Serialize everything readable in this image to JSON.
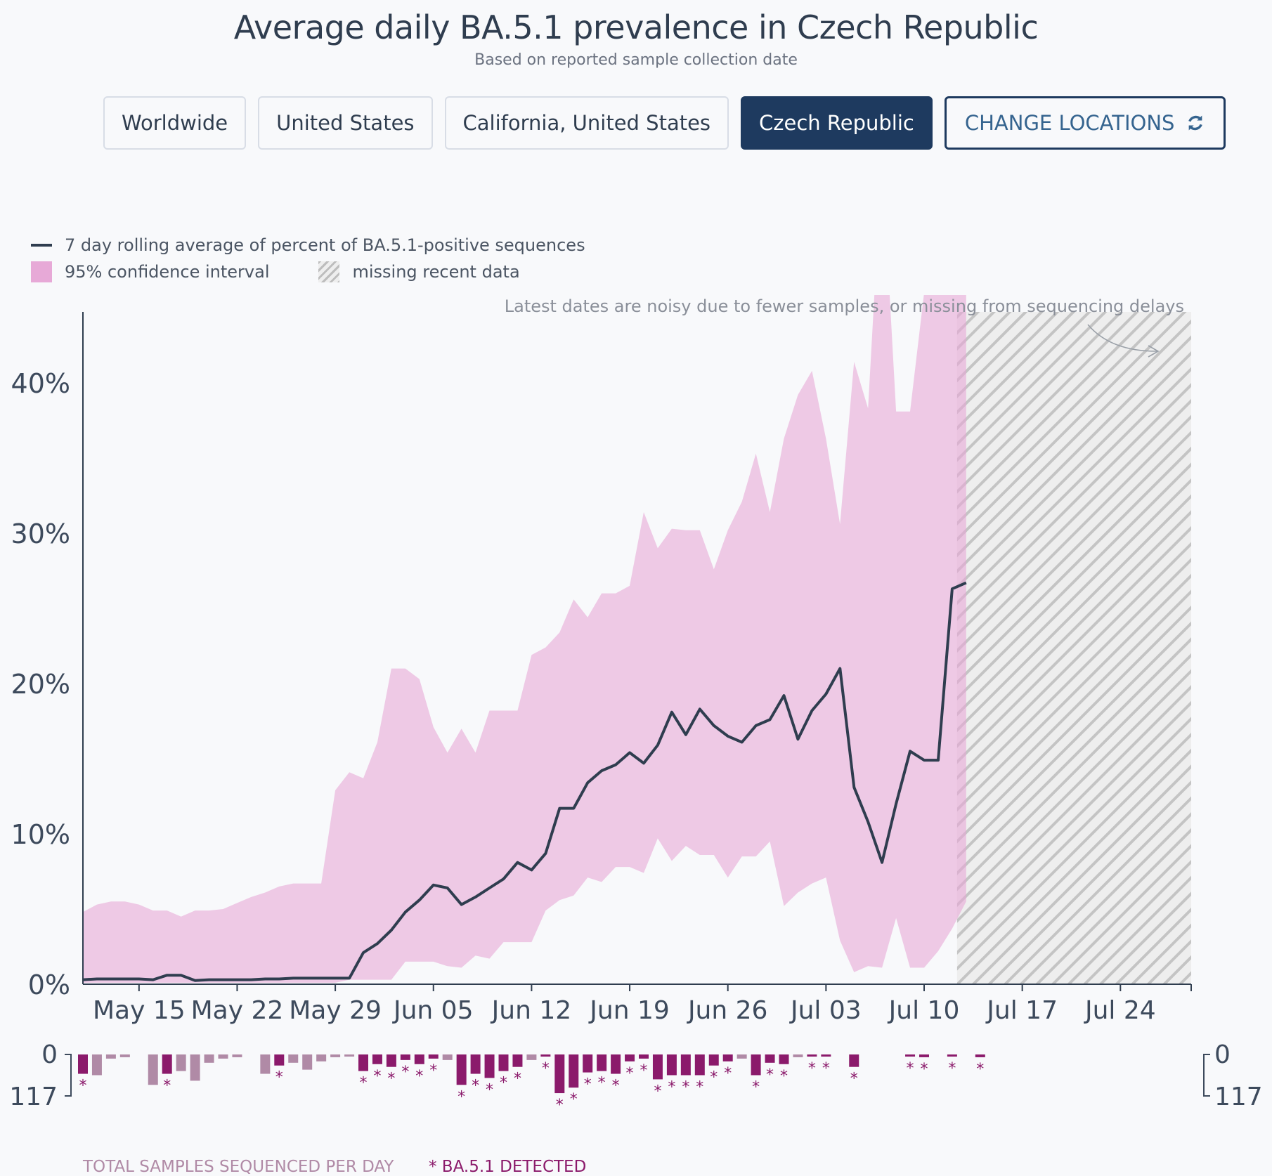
{
  "title": "Average daily BA.5.1 prevalence in Czech Republic",
  "subtitle": "Based on reported sample collection date",
  "locations": [
    {
      "label": "Worldwide",
      "active": false
    },
    {
      "label": "United States",
      "active": false
    },
    {
      "label": "California, United States",
      "active": false
    },
    {
      "label": "Czech Republic",
      "active": true
    }
  ],
  "change_locations": {
    "label": "CHANGE LOCATIONS",
    "icon": "refresh-icon"
  },
  "legend": {
    "line": "7 day rolling average of percent of BA.5.1-positive sequences",
    "ci": "95% confidence interval",
    "missing": "missing recent data"
  },
  "annotation": "Latest dates are noisy due to fewer samples, or missing from sequencing delays",
  "bottom_legend": {
    "total": "TOTAL SAMPLES SEQUENCED PER DAY",
    "detected": "* BA.5.1 DETECTED"
  },
  "colors": {
    "line": "#2f3d4f",
    "ci": "#e7a9d7",
    "total_bar": "#b08aa6",
    "detected_bar": "#8b1a6b",
    "active_button": "#1e3a5f"
  },
  "chart_data": {
    "type": "line",
    "x_start": "2022-05-11",
    "x_end": "2022-07-31",
    "x_ticks": [
      {
        "label": "May 15",
        "day": 4
      },
      {
        "label": "May 22",
        "day": 11
      },
      {
        "label": "May 29",
        "day": 18
      },
      {
        "label": "Jun 05",
        "day": 25
      },
      {
        "label": "Jun 12",
        "day": 32
      },
      {
        "label": "Jun 19",
        "day": 39
      },
      {
        "label": "Jun 26",
        "day": 46
      },
      {
        "label": "Jul 03",
        "day": 53
      },
      {
        "label": "Jul 10",
        "day": 60
      },
      {
        "label": "Jul 17",
        "day": 67
      },
      {
        "label": "Jul 24",
        "day": 74
      }
    ],
    "y_ticks": [
      {
        "label": "0%",
        "value": 0
      },
      {
        "label": "10%",
        "value": 10
      },
      {
        "label": "20%",
        "value": 20
      },
      {
        "label": "30%",
        "value": 30
      },
      {
        "label": "40%",
        "value": 40
      }
    ],
    "ylim": [
      0,
      44
    ],
    "missing_data_start_day": 62,
    "series": [
      {
        "values": [
          0.3,
          0.35,
          0.35,
          0.35,
          0.35,
          0.3,
          0.6,
          0.6,
          0.25,
          0.3,
          0.3,
          0.3,
          0.3,
          0.35,
          0.35,
          0.4,
          0.4,
          0.4,
          0.4,
          0.4,
          2.1,
          2.7,
          3.6,
          4.8,
          5.6,
          6.6,
          6.4,
          5.3,
          5.8,
          6.4,
          7.0,
          8.1,
          7.6,
          8.7,
          11.7,
          11.7,
          13.4,
          14.2,
          14.6,
          15.4,
          14.7,
          15.9,
          18.1,
          16.6,
          18.3,
          17.2,
          16.5,
          16.1,
          17.2,
          17.6,
          19.2,
          16.3,
          18.2,
          19.3,
          21.0,
          13.1,
          10.8,
          8.1,
          12.0,
          15.5,
          14.9,
          14.9,
          26.3,
          26.7
        ]
      }
    ],
    "ci_upper": [
      4.8,
      5.3,
      5.5,
      5.5,
      5.3,
      4.9,
      4.9,
      4.5,
      4.9,
      4.9,
      5.0,
      5.4,
      5.8,
      6.1,
      6.5,
      6.7,
      6.7,
      6.7,
      12.9,
      14.1,
      13.7,
      16.1,
      21.0,
      21.0,
      20.3,
      17.1,
      15.4,
      17.0,
      15.4,
      18.2,
      18.2,
      18.2,
      21.9,
      22.4,
      23.4,
      25.6,
      24.4,
      26.0,
      26.0,
      26.5,
      31.4,
      29.0,
      30.3,
      30.2,
      30.2,
      27.6,
      30.2,
      32.1,
      35.3,
      31.4,
      36.3,
      39.2,
      40.8,
      36.3,
      30.6,
      41.4,
      38.3,
      55.0,
      38.1,
      38.1,
      46.0,
      46.0,
      46.0,
      46.0
    ],
    "ci_lower": [
      0.1,
      0.1,
      0.1,
      0.1,
      0.1,
      0.1,
      0.1,
      0.1,
      0.1,
      0.1,
      0.1,
      0.1,
      0.1,
      0.1,
      0.1,
      0.1,
      0.1,
      0.1,
      0.1,
      0.3,
      0.3,
      0.3,
      0.3,
      1.5,
      1.5,
      1.5,
      1.2,
      1.1,
      1.9,
      1.7,
      2.8,
      2.8,
      2.8,
      4.9,
      5.6,
      5.9,
      7.1,
      6.8,
      7.8,
      7.8,
      7.4,
      9.7,
      8.2,
      9.2,
      8.6,
      8.6,
      7.1,
      8.5,
      8.5,
      9.5,
      5.2,
      6.1,
      6.7,
      7.1,
      2.9,
      0.8,
      1.2,
      1.1,
      4.4,
      1.1,
      1.1,
      2.2,
      3.7,
      5.5
    ],
    "samples_total": [
      14,
      15,
      3,
      2,
      0,
      22,
      14,
      12,
      19,
      6,
      3,
      2,
      0,
      14,
      8,
      6,
      11,
      5,
      2,
      1,
      12,
      7,
      9,
      4,
      7,
      3,
      4,
      22,
      14,
      17,
      12,
      9,
      4,
      1,
      28,
      24,
      13,
      12,
      14,
      5,
      3,
      18,
      15,
      15,
      15,
      8,
      5,
      3,
      15,
      6,
      7,
      2,
      1,
      1,
      0,
      9,
      0,
      0,
      0,
      1,
      2,
      0,
      1,
      0,
      2
    ],
    "samples_detected": [
      1,
      0,
      0,
      0,
      0,
      0,
      1,
      0,
      0,
      0,
      0,
      0,
      0,
      0,
      1,
      0,
      0,
      0,
      0,
      0,
      1,
      1,
      1,
      1,
      1,
      1,
      0,
      1,
      1,
      1,
      1,
      1,
      0,
      1,
      1,
      1,
      1,
      1,
      1,
      1,
      1,
      1,
      1,
      1,
      1,
      1,
      1,
      0,
      1,
      1,
      1,
      0,
      1,
      1,
      0,
      1,
      0,
      0,
      0,
      1,
      1,
      0,
      1,
      0,
      1
    ],
    "samples_axis": {
      "top": "0",
      "bottom": "117"
    }
  }
}
